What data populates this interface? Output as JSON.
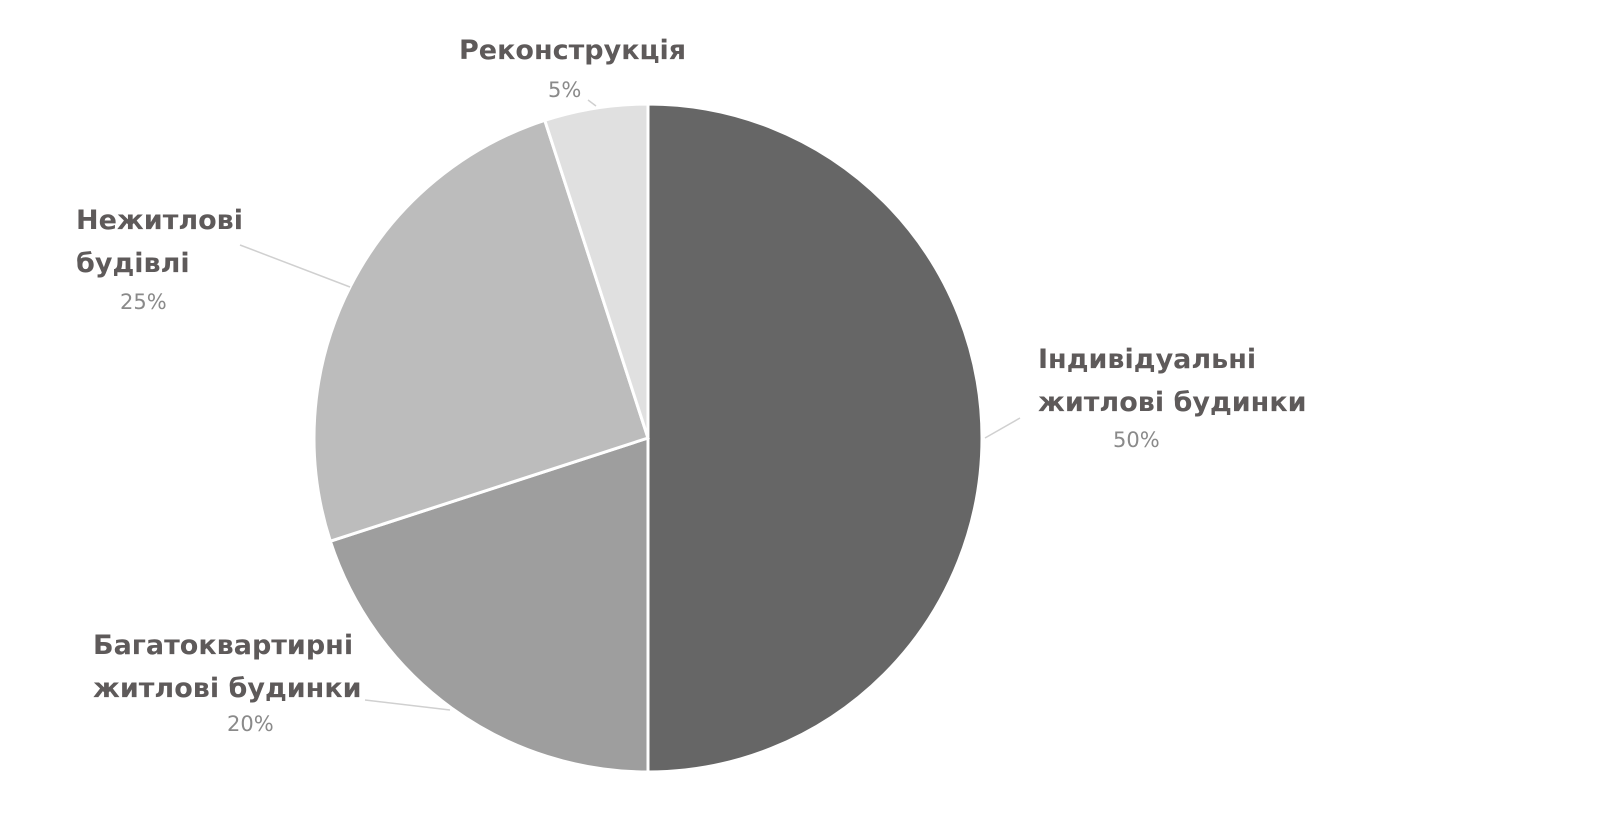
{
  "chart_data": {
    "type": "pie",
    "categories": [
      "Індивідуальні\nжитлові будинки",
      "Багатоквартирні\nжитлові будинки",
      "Нежитлові\nбудівлі",
      "Реконструкція"
    ],
    "values": [
      50,
      20,
      25,
      5
    ],
    "value_labels": [
      "50%",
      "20%",
      "25%",
      "5%"
    ],
    "colors": [
      "#666666",
      "#9e9e9e",
      "#bcbcbc",
      "#e0e0e0"
    ]
  }
}
